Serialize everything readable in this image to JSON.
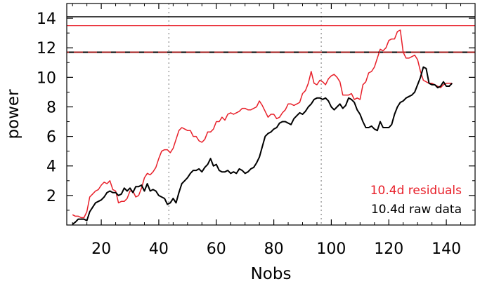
{
  "chart_data": {
    "type": "line",
    "xlabel": "Nobs",
    "ylabel": "power",
    "xlim": [
      8,
      150
    ],
    "ylim": [
      0,
      15
    ],
    "x_ticks": [
      20,
      40,
      60,
      80,
      100,
      120,
      140
    ],
    "y_ticks": [
      2,
      4,
      6,
      8,
      10,
      12,
      14
    ],
    "grid": false,
    "legend_position": "bottom-right",
    "vertical_lines": [
      {
        "x": 43.5,
        "color": "#888888",
        "style": "dotted"
      },
      {
        "x": 96.5,
        "color": "#888888",
        "style": "dotted"
      }
    ],
    "horizontal_lines": [
      {
        "y": 14.1,
        "color": "#000000",
        "style": "solid"
      },
      {
        "y": 13.5,
        "color": "#e8202a",
        "style": "solid"
      },
      {
        "y": 11.7,
        "color": "#000000",
        "style": "dashed"
      },
      {
        "y": 11.7,
        "color": "#a01818",
        "style": "dashed"
      }
    ],
    "series": [
      {
        "name": "10.4d raw data",
        "color": "#000000",
        "x": [
          10,
          11,
          12,
          13,
          14,
          15,
          16,
          17,
          18,
          19,
          20,
          21,
          22,
          23,
          24,
          25,
          26,
          27,
          28,
          29,
          30,
          31,
          32,
          33,
          34,
          35,
          36,
          37,
          38,
          39,
          40,
          41,
          42,
          43,
          44,
          45,
          46,
          47,
          48,
          49,
          50,
          51,
          52,
          53,
          54,
          55,
          56,
          57,
          58,
          59,
          60,
          61,
          62,
          63,
          64,
          65,
          66,
          67,
          68,
          69,
          70,
          71,
          72,
          73,
          74,
          75,
          76,
          77,
          78,
          79,
          80,
          81,
          82,
          83,
          84,
          85,
          86,
          87,
          88,
          89,
          90,
          91,
          92,
          93,
          94,
          95,
          96,
          97,
          98,
          99,
          100,
          101,
          102,
          103,
          104,
          105,
          106,
          107,
          108,
          109,
          110,
          111,
          112,
          113,
          114,
          115,
          116,
          117,
          118,
          119,
          120,
          121,
          122,
          123,
          124,
          125,
          126,
          127,
          128,
          129,
          130,
          131,
          132,
          133,
          134,
          135,
          136,
          137,
          138,
          139,
          140,
          141,
          142
        ],
        "y": [
          0.05,
          0.2,
          0.4,
          0.4,
          0.4,
          0.3,
          0.9,
          1.2,
          1.5,
          1.6,
          1.7,
          1.9,
          2.2,
          2.3,
          2.2,
          2.2,
          2.0,
          2.1,
          2.5,
          2.3,
          2.5,
          2.2,
          2.6,
          2.6,
          2.7,
          2.3,
          2.8,
          2.3,
          2.4,
          2.3,
          2.0,
          1.9,
          1.8,
          1.4,
          1.5,
          1.8,
          1.5,
          2.2,
          2.8,
          3.0,
          3.2,
          3.5,
          3.7,
          3.7,
          3.8,
          3.6,
          3.9,
          4.1,
          4.5,
          4.0,
          4.1,
          3.7,
          3.6,
          3.6,
          3.7,
          3.5,
          3.6,
          3.5,
          3.8,
          3.7,
          3.5,
          3.6,
          3.8,
          3.9,
          4.2,
          4.6,
          5.3,
          6.0,
          6.2,
          6.3,
          6.5,
          6.6,
          6.9,
          7.0,
          7.0,
          6.9,
          6.8,
          7.2,
          7.4,
          7.6,
          7.5,
          7.7,
          8.0,
          8.2,
          8.5,
          8.6,
          8.6,
          8.5,
          8.6,
          8.4,
          8.0,
          7.8,
          8.0,
          8.2,
          7.9,
          8.1,
          8.6,
          8.5,
          8.3,
          7.8,
          7.5,
          7.0,
          6.6,
          6.6,
          6.7,
          6.5,
          6.4,
          7.0,
          6.6,
          6.6,
          6.6,
          6.8,
          7.5,
          8.0,
          8.3,
          8.4,
          8.6,
          8.7,
          8.8,
          9.0,
          9.5,
          10.0,
          10.7,
          10.6,
          9.6,
          9.5,
          9.5,
          9.3,
          9.4,
          9.7,
          9.4,
          9.4,
          9.6
        ]
      },
      {
        "name": "10.4d residuals",
        "color": "#e8202a",
        "x": [
          10,
          11,
          12,
          13,
          14,
          15,
          16,
          17,
          18,
          19,
          20,
          21,
          22,
          23,
          24,
          25,
          26,
          27,
          28,
          29,
          30,
          31,
          32,
          33,
          34,
          35,
          36,
          37,
          38,
          39,
          40,
          41,
          42,
          43,
          44,
          45,
          46,
          47,
          48,
          49,
          50,
          51,
          52,
          53,
          54,
          55,
          56,
          57,
          58,
          59,
          60,
          61,
          62,
          63,
          64,
          65,
          66,
          67,
          68,
          69,
          70,
          71,
          72,
          73,
          74,
          75,
          76,
          77,
          78,
          79,
          80,
          81,
          82,
          83,
          84,
          85,
          86,
          87,
          88,
          89,
          90,
          91,
          92,
          93,
          94,
          95,
          96,
          97,
          98,
          99,
          100,
          101,
          102,
          103,
          104,
          105,
          106,
          107,
          108,
          109,
          110,
          111,
          112,
          113,
          114,
          115,
          116,
          117,
          118,
          119,
          120,
          121,
          122,
          123,
          124,
          125,
          126,
          127,
          128,
          129,
          130,
          131,
          132,
          133,
          134,
          135,
          136,
          137,
          138,
          139,
          140,
          141,
          142
        ],
        "y": [
          0.7,
          0.6,
          0.6,
          0.5,
          0.5,
          0.9,
          1.9,
          2.1,
          2.3,
          2.4,
          2.7,
          2.9,
          2.8,
          3.0,
          2.4,
          2.3,
          1.5,
          1.6,
          1.6,
          1.8,
          2.3,
          2.3,
          1.9,
          2.0,
          2.5,
          3.2,
          3.5,
          3.4,
          3.6,
          3.9,
          4.5,
          5.0,
          5.1,
          5.1,
          4.9,
          5.2,
          5.8,
          6.4,
          6.6,
          6.5,
          6.4,
          6.4,
          6.0,
          6.0,
          5.7,
          5.6,
          5.8,
          6.3,
          6.3,
          6.5,
          7.0,
          7.0,
          7.3,
          7.1,
          7.5,
          7.6,
          7.5,
          7.6,
          7.7,
          7.9,
          7.9,
          7.8,
          7.8,
          7.9,
          8.0,
          8.4,
          8.1,
          7.7,
          7.3,
          7.5,
          7.5,
          7.2,
          7.3,
          7.6,
          7.8,
          8.2,
          8.2,
          8.1,
          8.2,
          8.3,
          8.9,
          9.1,
          9.6,
          10.4,
          9.6,
          9.5,
          9.8,
          9.7,
          9.5,
          9.9,
          10.1,
          10.2,
          10.0,
          9.7,
          8.8,
          8.8,
          8.8,
          8.9,
          8.5,
          8.6,
          8.5,
          9.5,
          9.7,
          10.3,
          10.4,
          10.7,
          11.3,
          11.9,
          11.8,
          12.0,
          12.5,
          12.6,
          12.6,
          13.1,
          13.2,
          11.7,
          11.3,
          11.3,
          11.4,
          11.5,
          11.2,
          10.4,
          9.8,
          9.7,
          9.6,
          9.6,
          9.5,
          9.4,
          9.3,
          9.5,
          9.6,
          9.6,
          9.6
        ]
      }
    ]
  }
}
